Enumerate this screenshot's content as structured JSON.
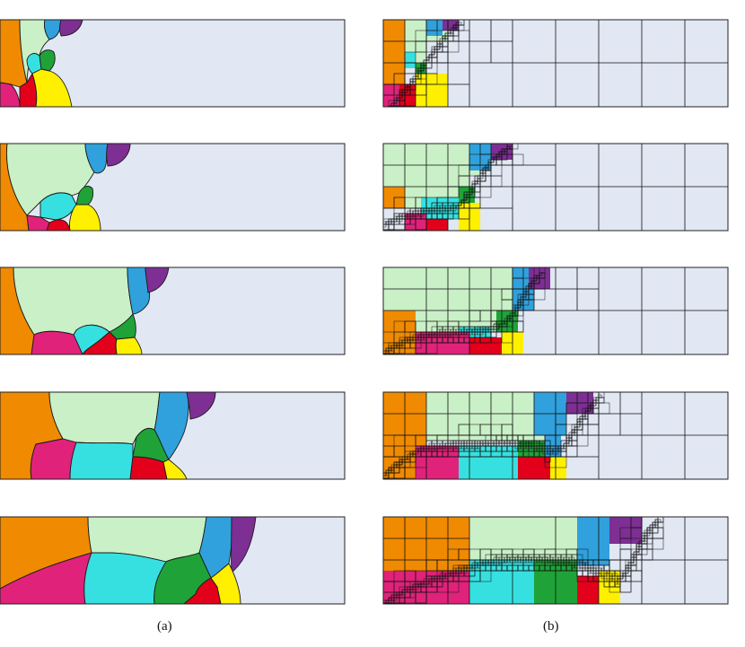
{
  "captions": {
    "left": "(a)",
    "right": "(b)"
  },
  "colors": {
    "background": "#e1e7f3",
    "orange": "#f08a00",
    "lightgreen": "#c9f0c6",
    "blue": "#30a1dc",
    "purple": "#7d2f93",
    "cyan": "#37e0e0",
    "green": "#1fa338",
    "pink": "#e0227a",
    "red": "#e3001b",
    "yellow": "#fff000"
  },
  "panels": {
    "left_column": "grain-evolution",
    "right_column": "adaptive-mesh-refinement",
    "rows": 5
  }
}
